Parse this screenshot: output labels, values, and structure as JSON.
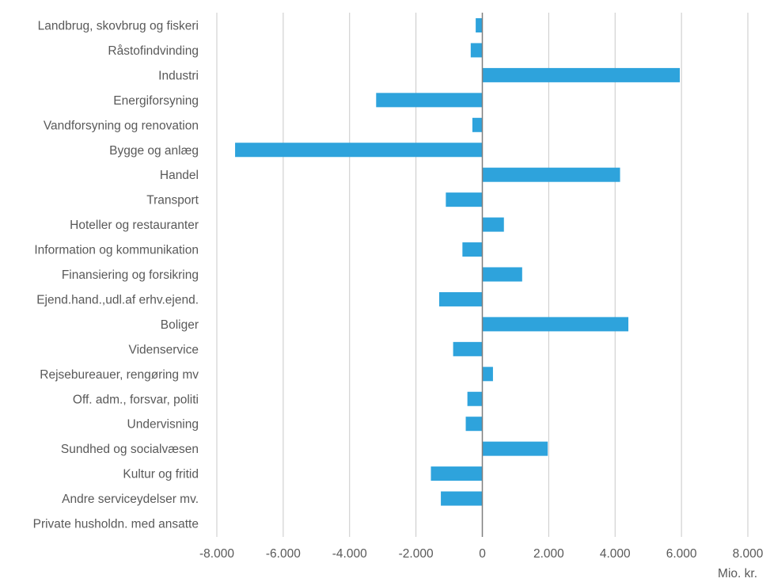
{
  "chart_data": {
    "type": "bar",
    "orientation": "horizontal",
    "categories": [
      "Landbrug, skovbrug og fiskeri",
      "Råstofindvinding",
      "Industri",
      "Energiforsyning",
      "Vandforsyning og renovation",
      "Bygge og anlæg",
      "Handel",
      "Transport",
      "Hoteller og restauranter",
      "Information og kommunikation",
      "Finansiering og forsikring",
      "Ejend.hand.,udl.af erhv.ejend.",
      "Boliger",
      "Videnservice",
      "Rejsebureauer, rengøring mv",
      "Off. adm., forsvar, politi",
      "Undervisning",
      "Sundhed og socialvæsen",
      "Kultur og fritid",
      "Andre serviceydelser mv.",
      "Private husholdn. med ansatte"
    ],
    "values": [
      -200,
      -350,
      5950,
      -3200,
      -300,
      -7450,
      4150,
      -1100,
      650,
      -600,
      1200,
      -1300,
      4400,
      -880,
      320,
      -450,
      -500,
      1970,
      -1550,
      -1250,
      0
    ],
    "xlim": [
      -8000,
      8000
    ],
    "ticks": [
      -8000,
      -6000,
      -4000,
      -2000,
      0,
      2000,
      4000,
      6000,
      8000
    ],
    "tick_labels": [
      "-8.000",
      "-6.000",
      "-4.000",
      "-2.000",
      "0",
      "2.000",
      "4.000",
      "6.000",
      "8.000"
    ],
    "unit_label": "Mio. kr.",
    "grid": "vertical",
    "bar_color": "#2ea3dc"
  }
}
